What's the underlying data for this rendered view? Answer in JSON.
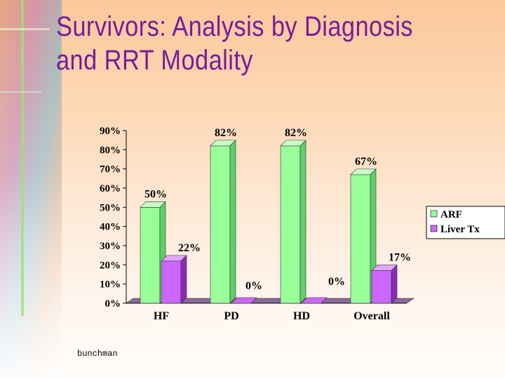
{
  "slide": {
    "title_line1": "Survivors:  Analysis by Diagnosis",
    "title_line2": "and RRT Modality",
    "footer": "bunchman"
  },
  "colors": {
    "title": "#7a1a9c",
    "arf": "#99ff99",
    "liver_tx": "#cc66ff"
  },
  "chart_data": {
    "type": "bar",
    "title": "",
    "xlabel": "",
    "ylabel": "",
    "categories": [
      "HF",
      "PD",
      "HD",
      "Overall"
    ],
    "series": [
      {
        "name": "ARF",
        "values": [
          50,
          82,
          82,
          67
        ],
        "labels": [
          "50%",
          "82%",
          "82%",
          "67%"
        ]
      },
      {
        "name": "Liver Tx",
        "values": [
          22,
          0,
          0,
          17
        ],
        "labels": [
          "22%",
          "0%",
          "0%",
          "17%"
        ]
      }
    ],
    "ylim": [
      0,
      90
    ],
    "yticks": [
      0,
      10,
      20,
      30,
      40,
      50,
      60,
      70,
      80,
      90
    ],
    "ytick_labels": [
      "0%",
      "10%",
      "20%",
      "30%",
      "40%",
      "50%",
      "60%",
      "70%",
      "80%",
      "90%"
    ],
    "legend": "right",
    "grid": false
  }
}
